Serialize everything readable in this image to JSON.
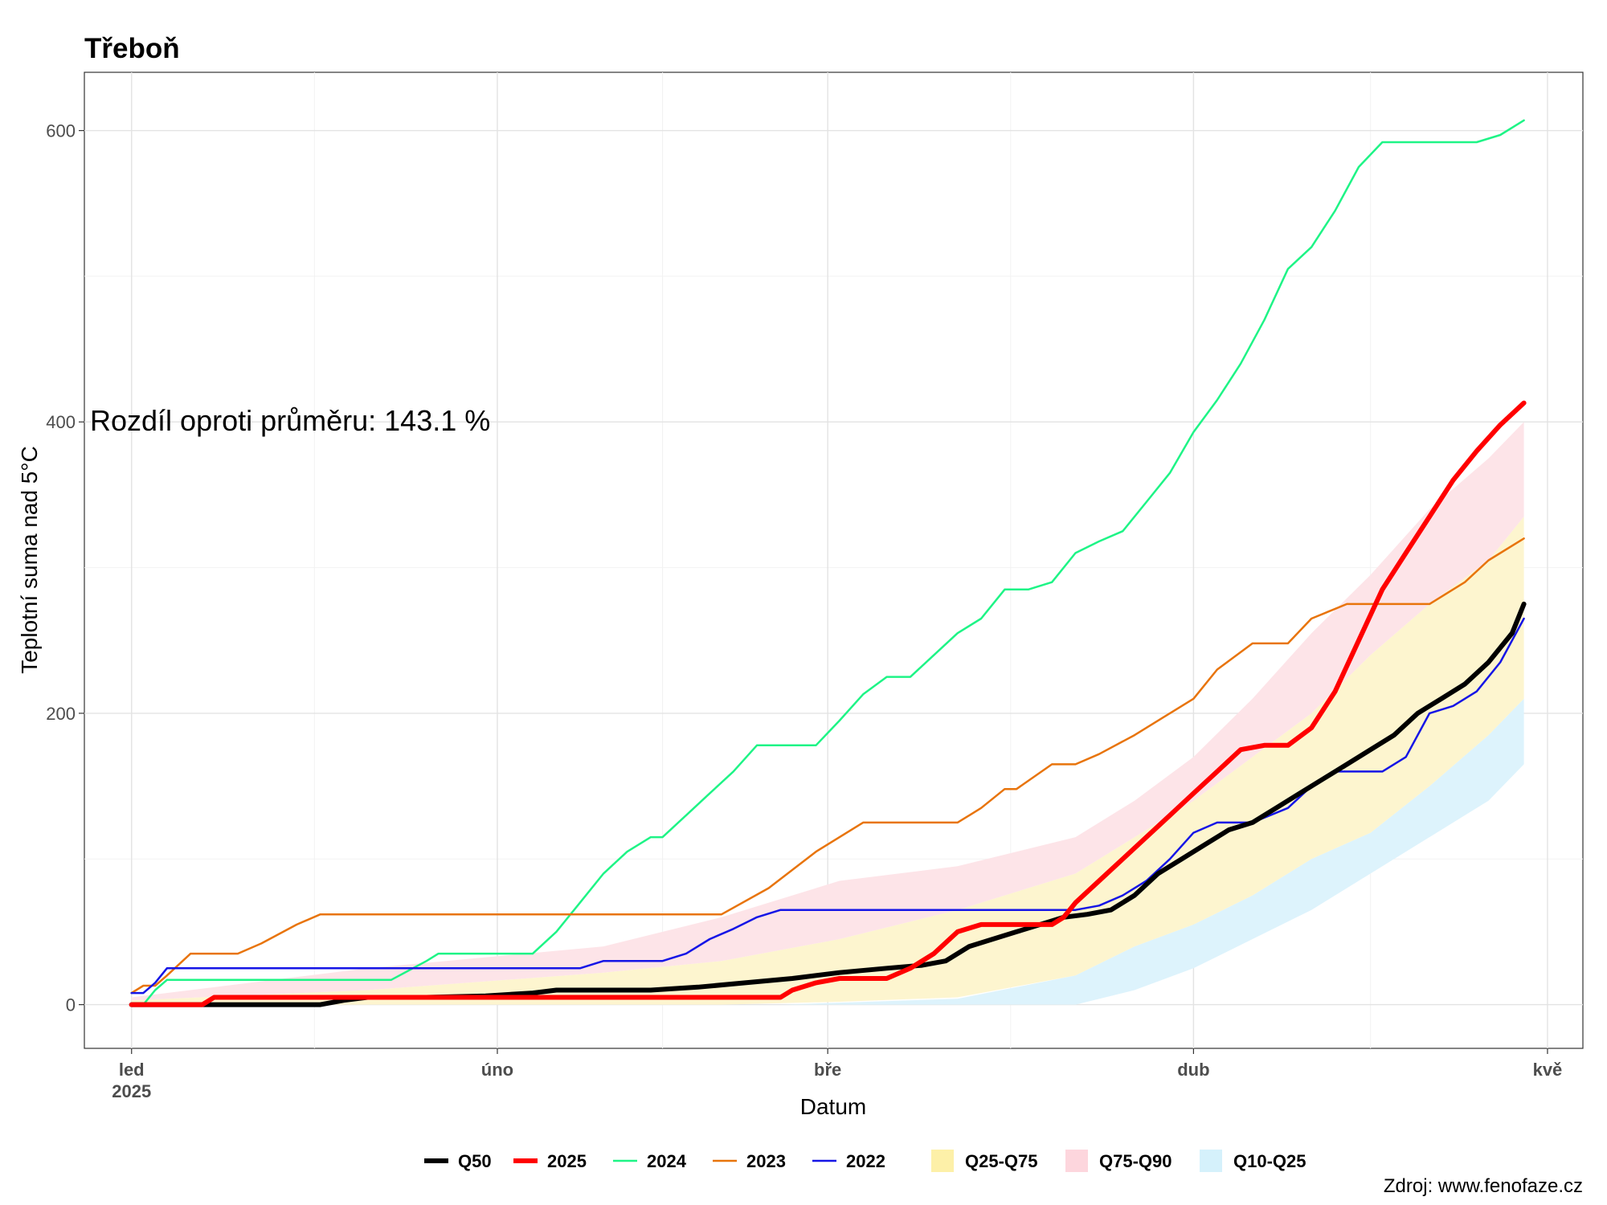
{
  "chart_data": {
    "type": "line",
    "title": "Třeboň",
    "xlabel": "Datum",
    "ylabel": "Teplotní suma nad 5°C",
    "ylim": [
      -30,
      640
    ],
    "yticks": [
      0,
      200,
      400,
      600
    ],
    "xlim": [
      -4,
      123
    ],
    "xticks": [
      {
        "x": 0,
        "label": "led",
        "sublabel": "2025"
      },
      {
        "x": 31,
        "label": "úno",
        "sublabel": ""
      },
      {
        "x": 59,
        "label": "bře",
        "sublabel": ""
      },
      {
        "x": 90,
        "label": "dub",
        "sublabel": ""
      },
      {
        "x": 120,
        "label": "kvě",
        "sublabel": ""
      }
    ],
    "x_unit": "days since 1 Jan",
    "annotation": "Rozdíl oproti průměru: 143.1 %",
    "source": "Zdroj: www.fenofaze.cz",
    "grid": true,
    "legend_position": "bottom",
    "bands": [
      {
        "name": "Q10-Q25",
        "color": "#ddf3fc",
        "x": [
          0,
          55,
          70,
          80,
          85,
          90,
          95,
          100,
          105,
          110,
          115,
          118
        ],
        "lower": [
          0,
          0,
          0,
          0,
          10,
          25,
          45,
          65,
          90,
          115,
          140,
          165
        ],
        "upper": [
          0,
          0,
          4,
          20,
          40,
          55,
          75,
          100,
          118,
          150,
          185,
          210
        ]
      },
      {
        "name": "Q25-Q75",
        "color": "#fdf5cf",
        "x": [
          0,
          20,
          40,
          50,
          60,
          70,
          80,
          85,
          90,
          95,
          100,
          105,
          110,
          115,
          118
        ],
        "lower": [
          0,
          0,
          0,
          0,
          2,
          5,
          20,
          40,
          55,
          75,
          100,
          118,
          150,
          185,
          210
        ],
        "upper": [
          3,
          10,
          22,
          30,
          45,
          65,
          90,
          115,
          140,
          170,
          200,
          240,
          275,
          305,
          335
        ]
      },
      {
        "name": "Q75-Q90",
        "color": "#fde4e8",
        "x": [
          0,
          20,
          40,
          50,
          60,
          70,
          80,
          85,
          90,
          95,
          100,
          105,
          110,
          115,
          118
        ],
        "lower": [
          3,
          10,
          22,
          30,
          45,
          65,
          90,
          115,
          140,
          170,
          200,
          240,
          275,
          305,
          335
        ],
        "upper": [
          5,
          25,
          40,
          60,
          85,
          95,
          115,
          140,
          170,
          210,
          255,
          295,
          340,
          375,
          400
        ]
      }
    ],
    "series": [
      {
        "name": "2024",
        "color": "#1ef486",
        "width": 2.5,
        "x": [
          0,
          1,
          2,
          3,
          22,
          25,
          26,
          29,
          34,
          36,
          38,
          40,
          42,
          44,
          45,
          47,
          49,
          51,
          53,
          55,
          58,
          60,
          62,
          64,
          66,
          68,
          70,
          72,
          74,
          76,
          78,
          80,
          82,
          84,
          86,
          88,
          90,
          92,
          94,
          96,
          98,
          100,
          102,
          104,
          106,
          108,
          110,
          112,
          114,
          116,
          118
        ],
        "y": [
          0,
          0,
          10,
          17,
          17,
          30,
          35,
          35,
          35,
          50,
          70,
          90,
          105,
          115,
          115,
          130,
          145,
          160,
          178,
          178,
          178,
          195,
          213,
          225,
          225,
          240,
          255,
          265,
          285,
          285,
          290,
          310,
          318,
          325,
          345,
          365,
          393,
          415,
          440,
          470,
          505,
          520,
          545,
          575,
          592,
          592,
          592,
          592,
          592,
          597,
          607
        ]
      },
      {
        "name": "2023",
        "color": "#e8740b",
        "width": 2.5,
        "x": [
          0,
          1,
          2,
          3,
          5,
          8,
          9,
          11,
          14,
          16,
          18,
          20,
          24,
          28,
          32,
          36,
          40,
          43,
          46,
          50,
          54,
          58,
          62,
          65,
          67,
          68,
          70,
          71,
          72,
          74,
          75,
          78,
          80,
          82,
          85,
          88,
          90,
          92,
          95,
          98,
          100,
          103,
          106,
          110,
          113,
          115,
          118
        ],
        "y": [
          8,
          13,
          13,
          20,
          35,
          35,
          35,
          42,
          55,
          62,
          62,
          62,
          62,
          62,
          62,
          62,
          62,
          62,
          62,
          62,
          80,
          105,
          125,
          125,
          125,
          125,
          125,
          130,
          135,
          148,
          148,
          165,
          165,
          172,
          185,
          200,
          210,
          230,
          248,
          248,
          265,
          275,
          275,
          275,
          290,
          305,
          320
        ]
      },
      {
        "name": "2022",
        "color": "#1515e6",
        "width": 2.5,
        "x": [
          0,
          1,
          2,
          3,
          10,
          20,
          30,
          36,
          38,
          40,
          42,
          45,
          47,
          49,
          51,
          53,
          55,
          58,
          60,
          62,
          64,
          66,
          68,
          70,
          72,
          74,
          76,
          78,
          80,
          82,
          84,
          86,
          88,
          90,
          92,
          95,
          98,
          100,
          102,
          104,
          106,
          108,
          110,
          112,
          114,
          116,
          118
        ],
        "y": [
          8,
          8,
          15,
          25,
          25,
          25,
          25,
          25,
          25,
          30,
          30,
          30,
          35,
          45,
          52,
          60,
          65,
          65,
          65,
          65,
          65,
          65,
          65,
          65,
          65,
          65,
          65,
          65,
          65,
          68,
          75,
          85,
          100,
          118,
          125,
          125,
          135,
          150,
          160,
          160,
          160,
          170,
          200,
          205,
          215,
          235,
          265
        ]
      },
      {
        "name": "Q50",
        "color": "#000000",
        "width": 6,
        "x": [
          0,
          4,
          8,
          12,
          16,
          18,
          20,
          25,
          30,
          34,
          36,
          40,
          44,
          48,
          52,
          56,
          60,
          64,
          67,
          69,
          71,
          73,
          75,
          77,
          79,
          81,
          83,
          85,
          87,
          89,
          91,
          93,
          95,
          97,
          99,
          101,
          103,
          105,
          107,
          109,
          111,
          113,
          115,
          117,
          118
        ],
        "y": [
          0,
          0,
          0,
          0,
          0,
          3,
          5,
          5,
          6,
          8,
          10,
          10,
          10,
          12,
          15,
          18,
          22,
          25,
          27,
          30,
          40,
          45,
          50,
          55,
          60,
          62,
          65,
          75,
          90,
          100,
          110,
          120,
          125,
          135,
          145,
          155,
          165,
          175,
          185,
          200,
          210,
          220,
          235,
          255,
          275
        ]
      },
      {
        "name": "2025",
        "color": "#ff0000",
        "width": 6,
        "x": [
          0,
          6,
          7,
          20,
          40,
          55,
          56,
          58,
          60,
          64,
          66,
          68,
          70,
          72,
          75,
          78,
          79,
          80,
          82,
          84,
          86,
          88,
          90,
          92,
          94,
          96,
          98,
          100,
          102,
          104,
          106,
          108,
          110,
          112,
          114,
          116,
          118
        ],
        "y": [
          0,
          0,
          5,
          5,
          5,
          5,
          10,
          15,
          18,
          18,
          25,
          35,
          50,
          55,
          55,
          55,
          60,
          70,
          85,
          100,
          115,
          130,
          145,
          160,
          175,
          178,
          178,
          190,
          215,
          250,
          285,
          310,
          335,
          360,
          380,
          398,
          413
        ]
      }
    ],
    "legend": [
      {
        "label": "Q50",
        "kind": "line",
        "color": "#000000",
        "width": 6
      },
      {
        "label": "2025",
        "kind": "line",
        "color": "#ff0000",
        "width": 6
      },
      {
        "label": "2024",
        "kind": "line",
        "color": "#1ef486",
        "width": 2.5
      },
      {
        "label": "2023",
        "kind": "line",
        "color": "#e8740b",
        "width": 2.5
      },
      {
        "label": "2022",
        "kind": "line",
        "color": "#1515e6",
        "width": 2.5
      },
      {
        "label": "Q25-Q75",
        "kind": "fill",
        "color": "#fdf0a8"
      },
      {
        "label": "Q75-Q90",
        "kind": "fill",
        "color": "#fdd6dd"
      },
      {
        "label": "Q10-Q25",
        "kind": "fill",
        "color": "#d5f1fb"
      }
    ]
  }
}
